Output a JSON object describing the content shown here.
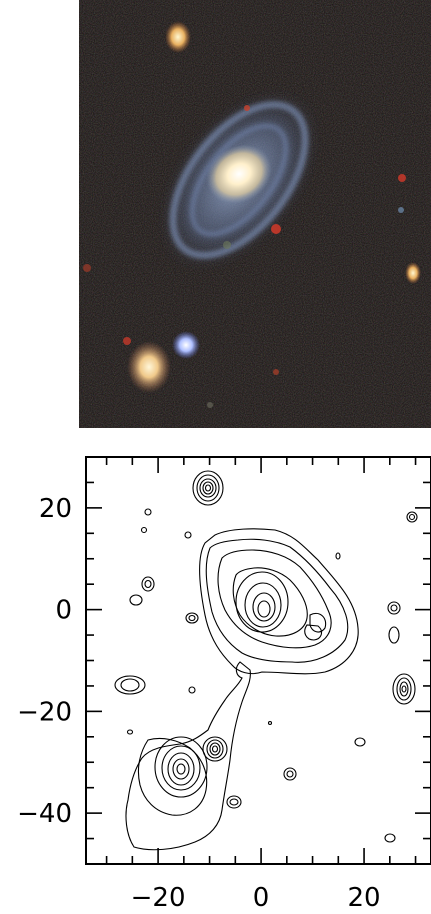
{
  "photo": {
    "background_color": "#15110f",
    "galaxy_arm_color": "#8fa6cc",
    "galaxy_core_color": "#fff2cf",
    "companion_color": "#f3d79a",
    "blue_star_color": "#c9d6ff",
    "red_star_color": "#d23a2a"
  },
  "plot": {
    "x_ticks": [
      -20,
      0,
      20
    ],
    "y_ticks": [
      20,
      0,
      -20,
      -40
    ],
    "x_range": [
      -34,
      33
    ],
    "y_range": [
      -50,
      30
    ],
    "x_tick_labels": [
      "−20",
      "0",
      "20"
    ],
    "y_tick_labels": [
      "20",
      "0",
      "−20",
      "−40"
    ]
  }
}
